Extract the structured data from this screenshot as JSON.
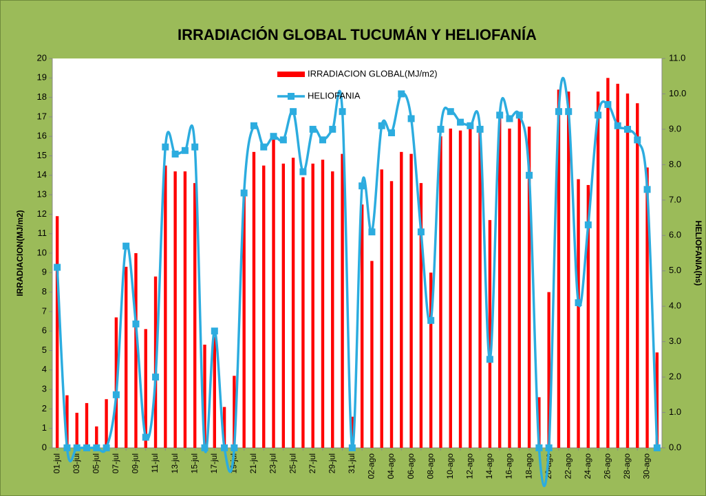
{
  "chart_data": {
    "type": "bar_line",
    "title": "IRRADIACIÓN  GLOBAL TUCUMÁN Y HELIOFANÍA",
    "y_label": "IRRADIACION(MJ/m2)",
    "y2_label": "HELIOFANIA(hs)",
    "categories": [
      "01-jul",
      null,
      "03-jul",
      null,
      "05-jul",
      null,
      "07-jul",
      null,
      "09-jul",
      null,
      "11-jul",
      null,
      "13-jul",
      null,
      "15-jul",
      null,
      "17-jul",
      null,
      "19-jul",
      null,
      "21-jul",
      null,
      "23-jul",
      null,
      "25-jul",
      null,
      "27-jul",
      null,
      "29-jul",
      null,
      "31-jul",
      null,
      "02-ago",
      null,
      "04-ago",
      null,
      "06-ago",
      null,
      "08-ago",
      null,
      "10-ago",
      null,
      "12-ago",
      null,
      "14-ago",
      null,
      "16-ago",
      null,
      "18-ago",
      null,
      "20-ago",
      null,
      "22-ago",
      null,
      "24-ago",
      null,
      "26-ago",
      null,
      "28-ago",
      null,
      "30-ago",
      null
    ],
    "series": [
      {
        "name": "IRRADIACION GLOBAL(MJ/m2)",
        "kind": "bar",
        "color": "#ff0000",
        "values": [
          11.9,
          2.7,
          1.8,
          2.3,
          1.1,
          2.5,
          6.7,
          9.3,
          10.0,
          6.1,
          8.8,
          14.5,
          14.2,
          14.2,
          13.6,
          5.3,
          5.7,
          2.1,
          3.7,
          13.0,
          15.2,
          14.5,
          15.9,
          14.6,
          14.9,
          13.9,
          14.6,
          14.8,
          14.2,
          15.1,
          1.6,
          12.5,
          9.6,
          14.3,
          13.7,
          15.2,
          15.1,
          13.6,
          9.0,
          16.0,
          16.4,
          16.3,
          16.4,
          16.4,
          11.7,
          17.0,
          16.4,
          17.0,
          16.5,
          2.6,
          8.0,
          18.4,
          18.3,
          13.8,
          13.5,
          18.3,
          19.0,
          18.7,
          18.2,
          17.7,
          14.4,
          4.9
        ]
      },
      {
        "name": "HELIOFANIA",
        "kind": "line",
        "axis": "y2",
        "color": "#2cacdf",
        "values": [
          5.1,
          0,
          0,
          0,
          0,
          0,
          1.5,
          5.7,
          3.5,
          0.3,
          2.0,
          8.5,
          8.3,
          8.4,
          8.5,
          0,
          3.3,
          0,
          0,
          7.2,
          9.1,
          8.5,
          8.8,
          8.7,
          9.5,
          7.8,
          9.0,
          8.7,
          9.0,
          9.5,
          0,
          7.4,
          6.1,
          9.1,
          8.9,
          10.0,
          9.3,
          6.1,
          3.6,
          9.0,
          9.5,
          9.2,
          9.1,
          9.0,
          2.5,
          9.4,
          9.3,
          9.4,
          7.7,
          0,
          0,
          9.5,
          9.5,
          4.1,
          6.3,
          9.4,
          9.7,
          9.1,
          9.0,
          8.7,
          7.3,
          0
        ]
      }
    ],
    "ylim": [
      0,
      20
    ],
    "yticks": [
      0,
      1,
      2,
      3,
      4,
      5,
      6,
      7,
      8,
      9,
      10,
      11,
      12,
      13,
      14,
      15,
      16,
      17,
      18,
      19,
      20
    ],
    "y2lim": [
      0,
      11
    ],
    "y2ticks": [
      {
        "value": 0,
        "label": "0.0"
      },
      {
        "value": 1,
        "label": "1.0"
      },
      {
        "value": 2,
        "label": "2.0"
      },
      {
        "value": 3,
        "label": "3.0"
      },
      {
        "value": 4,
        "label": "4.0"
      },
      {
        "value": 5,
        "label": "5.0"
      },
      {
        "value": 6,
        "label": "6.0"
      },
      {
        "value": 7,
        "label": "7.0"
      },
      {
        "value": 8,
        "label": "8.0"
      },
      {
        "value": 9,
        "label": "9.0"
      },
      {
        "value": 10,
        "label": "10.0"
      },
      {
        "value": 11,
        "label": "11.0"
      }
    ],
    "grid": false
  }
}
